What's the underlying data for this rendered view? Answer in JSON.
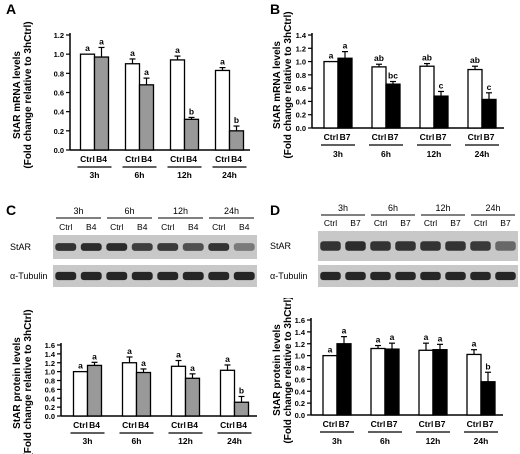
{
  "colors": {
    "axis": "#000000",
    "gray_fill": "#999999",
    "black_fill": "#000000",
    "white_fill": "#ffffff",
    "blot_bg": "#c8c8c8",
    "blot_band": "#1e1e1e"
  },
  "panels": {
    "A": {
      "label": "A"
    },
    "B": {
      "label": "B"
    },
    "C": {
      "label": "C"
    },
    "D": {
      "label": "D"
    }
  },
  "blots": {
    "C": {
      "times": [
        "3h",
        "6h",
        "12h",
        "24h"
      ],
      "lanes": [
        "Ctrl",
        "B4",
        "Ctrl",
        "B4",
        "Ctrl",
        "B4",
        "Ctrl",
        "B4"
      ],
      "rows": [
        "StAR",
        "α-Tubulin"
      ]
    },
    "D": {
      "times": [
        "3h",
        "6h",
        "12h",
        "24h"
      ],
      "lanes": [
        "Ctrl",
        "B7",
        "Ctrl",
        "B7",
        "Ctrl",
        "B7",
        "Ctrl",
        "B7"
      ],
      "rows": [
        "StAR",
        "α-Tubulin"
      ]
    }
  },
  "chart_data": [
    {
      "id": "A",
      "type": "bar",
      "ylabel": "StAR mRNA levels",
      "ylabel2": "(Fold change relative to 3hCtrl)",
      "ylim": [
        0,
        1.2
      ],
      "yticks": [
        "0.0",
        "0.2",
        "0.4",
        "0.6",
        "0.8",
        "1.0",
        "1.2"
      ],
      "groups": [
        "3h",
        "6h",
        "12h",
        "24h"
      ],
      "bar_labels": [
        "Ctrl",
        "B4"
      ],
      "series": [
        {
          "name": "Ctrl",
          "fill": "white",
          "values": [
            1.0,
            0.9,
            0.94,
            0.83
          ],
          "errors": [
            0.0,
            0.05,
            0.04,
            0.03
          ],
          "letters": [
            "a",
            "a",
            "a",
            "a"
          ]
        },
        {
          "name": "B4",
          "fill": "gray",
          "values": [
            0.97,
            0.68,
            0.32,
            0.2
          ],
          "errors": [
            0.1,
            0.07,
            0.02,
            0.05
          ],
          "letters": [
            "a",
            "a",
            "b",
            "b"
          ]
        }
      ]
    },
    {
      "id": "B",
      "type": "bar",
      "ylabel": "StAR mRNA levels",
      "ylabel2": "(Fold change relative to 3hCtrl)",
      "ylim": [
        0,
        1.4
      ],
      "yticks": [
        "0.0",
        "0.2",
        "0.4",
        "0.6",
        "0.8",
        "1.0",
        "1.2",
        "1.4"
      ],
      "groups": [
        "3h",
        "6h",
        "12h",
        "24h"
      ],
      "bar_labels": [
        "Ctrl",
        "B7"
      ],
      "series": [
        {
          "name": "Ctrl",
          "fill": "white",
          "values": [
            1.0,
            0.92,
            0.93,
            0.88
          ],
          "errors": [
            0.0,
            0.04,
            0.04,
            0.05
          ],
          "letters": [
            "a",
            "ab",
            "ab",
            "ab"
          ]
        },
        {
          "name": "B7",
          "fill": "black",
          "values": [
            1.05,
            0.66,
            0.48,
            0.43
          ],
          "errors": [
            0.1,
            0.04,
            0.07,
            0.1
          ],
          "letters": [
            "a",
            "bc",
            "c",
            "c"
          ]
        }
      ]
    },
    {
      "id": "C",
      "type": "bar",
      "ylabel": "StAR protein levels",
      "ylabel2": "(Fold change relative to 3hCtrl)",
      "ylim": [
        0,
        1.6
      ],
      "yticks": [
        "0.0",
        "0.2",
        "0.4",
        "0.6",
        "0.8",
        "1.0",
        "1.2",
        "1.4",
        "1.6"
      ],
      "groups": [
        "3h",
        "6h",
        "12h",
        "24h"
      ],
      "bar_labels": [
        "Ctrl",
        "B4"
      ],
      "series": [
        {
          "name": "Ctrl",
          "fill": "white",
          "values": [
            1.0,
            1.2,
            1.12,
            1.03
          ],
          "errors": [
            0.0,
            0.13,
            0.13,
            0.12
          ],
          "letters": [
            "a",
            "a",
            "a",
            "a"
          ]
        },
        {
          "name": "B4",
          "fill": "gray",
          "values": [
            1.14,
            0.98,
            0.85,
            0.31
          ],
          "errors": [
            0.07,
            0.08,
            0.1,
            0.13
          ],
          "letters": [
            "a",
            "a",
            "a",
            "b"
          ]
        }
      ]
    },
    {
      "id": "D",
      "type": "bar",
      "ylabel": "StAR protein levels",
      "ylabel2": "(Fold change relative to 3hCtrl)",
      "ylim": [
        0,
        1.6
      ],
      "yticks": [
        "0.0",
        "0.2",
        "0.4",
        "0.6",
        "0.8",
        "1.0",
        "1.2",
        "1.4",
        "1.6"
      ],
      "groups": [
        "3h",
        "6h",
        "12h",
        "24h"
      ],
      "bar_labels": [
        "Ctrl",
        "B7"
      ],
      "series": [
        {
          "name": "Ctrl",
          "fill": "white",
          "values": [
            1.0,
            1.12,
            1.09,
            1.02
          ],
          "errors": [
            0.0,
            0.05,
            0.12,
            0.08
          ],
          "letters": [
            "a",
            "a",
            "a",
            "a"
          ]
        },
        {
          "name": "B7",
          "fill": "black",
          "values": [
            1.2,
            1.11,
            1.1,
            0.56
          ],
          "errors": [
            0.12,
            0.1,
            0.09,
            0.16
          ],
          "letters": [
            "a",
            "a",
            "a",
            "b"
          ]
        }
      ]
    }
  ]
}
